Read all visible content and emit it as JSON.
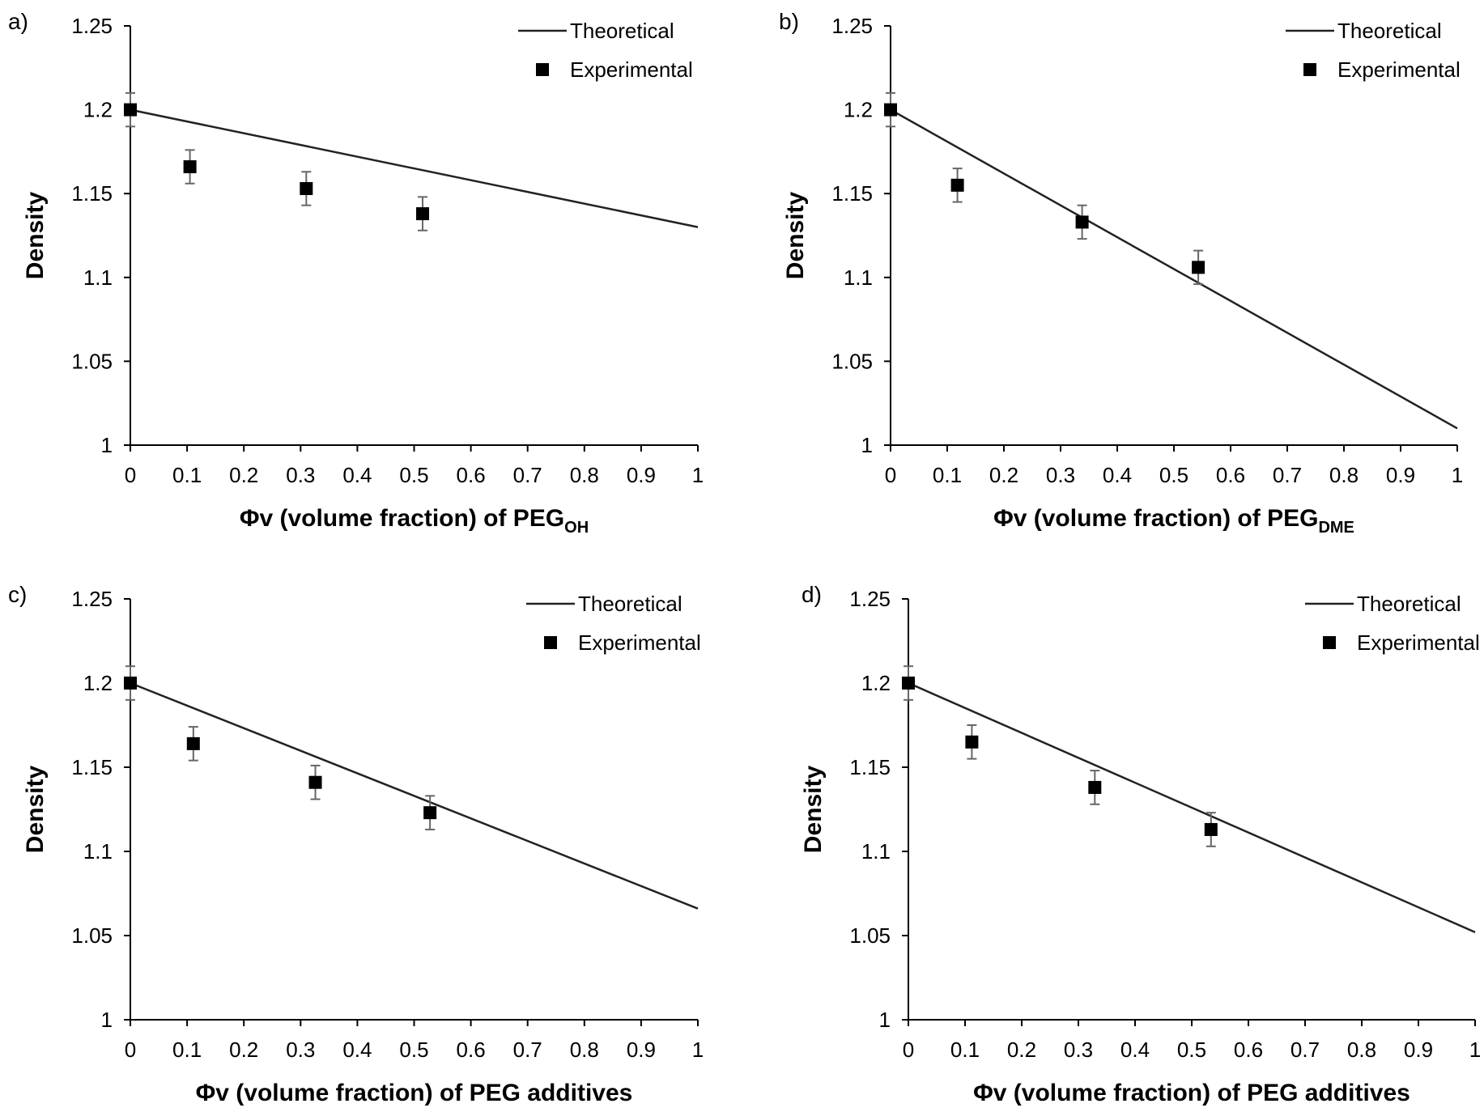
{
  "chart_data": [
    {
      "type": "scatter",
      "panel_label": "a)",
      "xlabel_main": "Φv (volume fraction) of PEG",
      "xlabel_sub": "OH",
      "ylabel": "Density",
      "xlim": [
        0,
        1
      ],
      "ylim": [
        1,
        1.25
      ],
      "x_ticks": [
        "0",
        "0.1",
        "0.2",
        "0.3",
        "0.4",
        "0.5",
        "0.6",
        "0.7",
        "0.8",
        "0.9",
        "1"
      ],
      "y_ticks": [
        "1",
        "1.05",
        "1.1",
        "1.15",
        "1.2",
        "1.25"
      ],
      "legend": {
        "line": "Theoretical",
        "marker": "Experimental",
        "position": "top-right"
      },
      "series": [
        {
          "name": "Theoretical",
          "kind": "line",
          "x": [
            0,
            1
          ],
          "y": [
            1.2,
            1.13
          ]
        },
        {
          "name": "Experimental",
          "kind": "marker",
          "x": [
            0,
            0.105,
            0.31,
            0.515
          ],
          "y": [
            1.2,
            1.166,
            1.153,
            1.138
          ],
          "error": 0.01
        }
      ]
    },
    {
      "type": "scatter",
      "panel_label": "b)",
      "xlabel_main": "Φv (volume fraction) of PEG",
      "xlabel_sub": "DME",
      "ylabel": "Density",
      "xlim": [
        0,
        1
      ],
      "ylim": [
        1,
        1.25
      ],
      "x_ticks": [
        "0",
        "0.1",
        "0.2",
        "0.3",
        "0.4",
        "0.5",
        "0.6",
        "0.7",
        "0.8",
        "0.9",
        "1"
      ],
      "y_ticks": [
        "1",
        "1.05",
        "1.1",
        "1.15",
        "1.2",
        "1.25"
      ],
      "legend": {
        "line": "Theoretical",
        "marker": "Experimental",
        "position": "top-right"
      },
      "series": [
        {
          "name": "Theoretical",
          "kind": "line",
          "x": [
            0,
            1
          ],
          "y": [
            1.2,
            1.01
          ]
        },
        {
          "name": "Experimental",
          "kind": "marker",
          "x": [
            0,
            0.118,
            0.338,
            0.543
          ],
          "y": [
            1.2,
            1.155,
            1.133,
            1.106
          ],
          "error": 0.01
        }
      ]
    },
    {
      "type": "scatter",
      "panel_label": "c)",
      "xlabel_main": "Φv (volume fraction) of PEG additives",
      "xlabel_sub": "",
      "ylabel": "Density",
      "xlim": [
        0,
        1
      ],
      "ylim": [
        1,
        1.25
      ],
      "x_ticks": [
        "0",
        "0.1",
        "0.2",
        "0.3",
        "0.4",
        "0.5",
        "0.6",
        "0.7",
        "0.8",
        "0.9",
        "1"
      ],
      "y_ticks": [
        "1",
        "1.05",
        "1.1",
        "1.15",
        "1.2",
        "1.25"
      ],
      "legend": {
        "line": "Theoretical",
        "marker": "Experimental",
        "position": "top-right"
      },
      "series": [
        {
          "name": "Theoretical",
          "kind": "line",
          "x": [
            0,
            1
          ],
          "y": [
            1.2,
            1.066
          ]
        },
        {
          "name": "Experimental",
          "kind": "marker",
          "x": [
            0,
            0.111,
            0.326,
            0.528
          ],
          "y": [
            1.2,
            1.164,
            1.141,
            1.123
          ],
          "error": 0.01
        }
      ]
    },
    {
      "type": "scatter",
      "panel_label": "d)",
      "xlabel_main": "Φv (volume fraction) of PEG additives",
      "xlabel_sub": "",
      "ylabel": "Density",
      "xlim": [
        0,
        1
      ],
      "ylim": [
        1,
        1.25
      ],
      "x_ticks": [
        "0",
        "0.1",
        "0.2",
        "0.3",
        "0.4",
        "0.5",
        "0.6",
        "0.7",
        "0.8",
        "0.9",
        "1"
      ],
      "y_ticks": [
        "1",
        "1.05",
        "1.1",
        "1.15",
        "1.2",
        "1.25"
      ],
      "legend": {
        "line": "Theoretical",
        "marker": "Experimental",
        "position": "top-right"
      },
      "series": [
        {
          "name": "Theoretical",
          "kind": "line",
          "x": [
            0,
            1
          ],
          "y": [
            1.2,
            1.052
          ]
        },
        {
          "name": "Experimental",
          "kind": "marker",
          "x": [
            0,
            0.112,
            0.329,
            0.534
          ],
          "y": [
            1.2,
            1.165,
            1.138,
            1.113
          ],
          "error": 0.01
        }
      ]
    }
  ]
}
